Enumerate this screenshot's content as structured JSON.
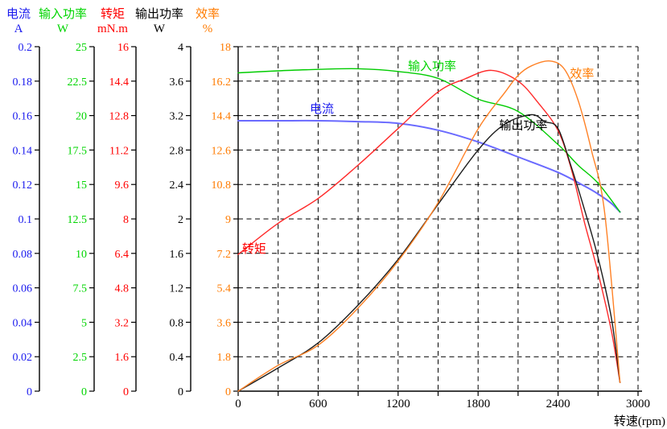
{
  "axes_panel": {
    "columns": [
      {
        "key": "current",
        "name": "电流",
        "unit": "A",
        "color": "#1a1aee",
        "axis_max": 0.2,
        "ticks": [
          "0.2",
          "0.18",
          "0.16",
          "0.14",
          "0.12",
          "0.1",
          "0.08",
          "0.06",
          "0.04",
          "0.02",
          "0"
        ]
      },
      {
        "key": "input-power",
        "name": "输入功率",
        "unit": "W",
        "color": "#00d500",
        "axis_max": 25,
        "ticks": [
          "25",
          "22.5",
          "20",
          "17.5",
          "15",
          "12.5",
          "10",
          "7.5",
          "5",
          "2.5",
          "0"
        ]
      },
      {
        "key": "torque",
        "name": "转矩",
        "unit": "mN.m",
        "color": "#ff0000",
        "axis_max": 16,
        "ticks": [
          "16",
          "14.4",
          "12.8",
          "11.2",
          "9.6",
          "8",
          "6.4",
          "4.8",
          "3.2",
          "1.6",
          "0"
        ]
      },
      {
        "key": "output-power",
        "name": "输出功率",
        "unit": "W",
        "color": "#000000",
        "axis_max": 4,
        "ticks": [
          "4",
          "3.6",
          "3.2",
          "2.8",
          "2.4",
          "2",
          "1.6",
          "1.2",
          "0.8",
          "0.4",
          "0"
        ]
      },
      {
        "key": "efficiency",
        "name": "效率",
        "unit": "%",
        "color": "#ff7b00",
        "axis_max": 18,
        "ticks": [
          "18",
          "16.2",
          "14.4",
          "12.6",
          "10.8",
          "9",
          "7.2",
          "5.4",
          "3.6",
          "1.8",
          "0"
        ]
      }
    ]
  },
  "x_axis": {
    "title": "转速(rpm)",
    "min": 0,
    "max": 3000,
    "major_tick_labels": [
      "0",
      "600",
      "1200",
      "1800",
      "2400",
      "3000"
    ],
    "minor_step": 300
  },
  "chart_data": {
    "type": "line",
    "xlabel": "转速(rpm)",
    "x_range": [
      0,
      3000
    ],
    "grid": "dashed",
    "grid_color": "#000000",
    "series": [
      {
        "key": "current",
        "name": "电流",
        "unit": "A",
        "color": "#6a6aff",
        "width": 2.0,
        "axis_max": 0.2,
        "label_at": {
          "x": 628,
          "y": 0.164
        },
        "points": [
          [
            0,
            0.157
          ],
          [
            300,
            0.157
          ],
          [
            600,
            0.157
          ],
          [
            900,
            0.1565
          ],
          [
            1200,
            0.1555
          ],
          [
            1500,
            0.1515
          ],
          [
            1800,
            0.1447
          ],
          [
            2100,
            0.136
          ],
          [
            2400,
            0.127
          ],
          [
            2600,
            0.119
          ],
          [
            2700,
            0.1145
          ],
          [
            2800,
            0.109
          ],
          [
            2865,
            0.104
          ]
        ]
      },
      {
        "key": "input-power",
        "name": "输入功率",
        "unit": "W",
        "color": "#00cc00",
        "width": 1.4,
        "axis_max": 25,
        "label_at": {
          "x": 1455,
          "y": 23.6
        },
        "points": [
          [
            0,
            23.1
          ],
          [
            300,
            23.25
          ],
          [
            600,
            23.35
          ],
          [
            900,
            23.4
          ],
          [
            1200,
            23.2
          ],
          [
            1500,
            22.7
          ],
          [
            1800,
            21.2
          ],
          [
            2100,
            20.3
          ],
          [
            2400,
            17.9
          ],
          [
            2550,
            16.4
          ],
          [
            2700,
            15.1
          ],
          [
            2865,
            13.0
          ]
        ]
      },
      {
        "key": "torque",
        "name": "转矩",
        "unit": "mN.m",
        "color": "#ff2a2a",
        "width": 1.4,
        "axis_max": 16,
        "label_at": {
          "x": 120,
          "y": 6.62
        },
        "points": [
          [
            0,
            6.35
          ],
          [
            300,
            7.8
          ],
          [
            600,
            8.95
          ],
          [
            900,
            10.5
          ],
          [
            1200,
            12.2
          ],
          [
            1500,
            13.9
          ],
          [
            1700,
            14.5
          ],
          [
            1900,
            14.9
          ],
          [
            2100,
            14.4
          ],
          [
            2250,
            13.4
          ],
          [
            2400,
            12.1
          ],
          [
            2500,
            10.3
          ],
          [
            2600,
            7.8
          ],
          [
            2700,
            5.5
          ],
          [
            2800,
            2.8
          ],
          [
            2865,
            0.4
          ]
        ]
      },
      {
        "key": "output-power",
        "name": "输出功率",
        "unit": "W",
        "color": "#1d1d1d",
        "width": 1.4,
        "axis_max": 4,
        "label_at": {
          "x": 2140,
          "y": 3.09
        },
        "points": [
          [
            0,
            0
          ],
          [
            300,
            0.27
          ],
          [
            600,
            0.56
          ],
          [
            900,
            1.0
          ],
          [
            1200,
            1.53
          ],
          [
            1500,
            2.17
          ],
          [
            1800,
            2.8
          ],
          [
            2000,
            3.1
          ],
          [
            2200,
            3.21
          ],
          [
            2300,
            3.13
          ],
          [
            2400,
            3.05
          ],
          [
            2500,
            2.6
          ],
          [
            2600,
            2.1
          ],
          [
            2700,
            1.55
          ],
          [
            2800,
            0.85
          ],
          [
            2865,
            0.1
          ]
        ]
      },
      {
        "key": "efficiency",
        "name": "效率",
        "unit": "%",
        "color": "#ff8125",
        "width": 1.4,
        "axis_max": 18,
        "label_at": {
          "x": 2580,
          "y": 16.6
        },
        "points": [
          [
            0,
            0
          ],
          [
            300,
            1.35
          ],
          [
            600,
            2.4
          ],
          [
            900,
            4.35
          ],
          [
            1200,
            6.8
          ],
          [
            1500,
            9.85
          ],
          [
            1800,
            13.7
          ],
          [
            2000,
            15.6
          ],
          [
            2100,
            16.5
          ],
          [
            2200,
            17.0
          ],
          [
            2340,
            17.25
          ],
          [
            2450,
            16.8
          ],
          [
            2550,
            15.2
          ],
          [
            2650,
            12.6
          ],
          [
            2750,
            9.3
          ],
          [
            2865,
            0.45
          ]
        ]
      }
    ]
  }
}
